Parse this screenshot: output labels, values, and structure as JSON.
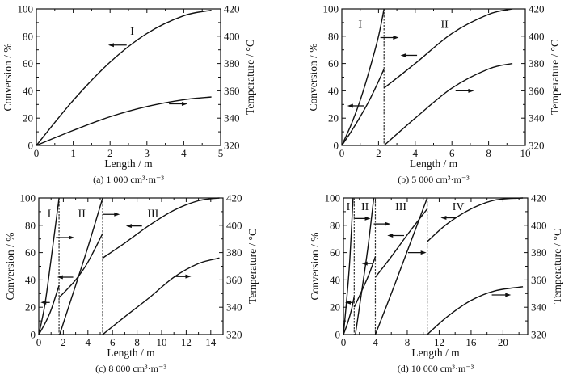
{
  "chart_data": [
    {
      "type": "line",
      "id": "a",
      "caption": "(a) 1 000 cm³·m⁻³",
      "xlabel": "Length / m",
      "ylabel_left": "Conversion / %",
      "ylabel_right": "Temperature / °C",
      "xlim": [
        0,
        5
      ],
      "xticks": [
        0,
        1,
        2,
        3,
        4,
        5
      ],
      "xtick_labels": [
        "0",
        "1",
        "2",
        "3",
        "4",
        "5"
      ],
      "x_minor": 0.5,
      "ylim_left": [
        0,
        100
      ],
      "yticks_left": [
        "0",
        "20",
        "40",
        "60",
        "80",
        "100"
      ],
      "ylim_right": [
        320,
        420
      ],
      "yticks_right": [
        "320",
        "340",
        "360",
        "380",
        "400",
        "420"
      ],
      "dividers": [],
      "stages": [
        {
          "label": "I",
          "x": 2.6,
          "y": 81
        }
      ],
      "series": [
        {
          "name": "Conversion stage I",
          "axis": "left",
          "x": [
            0,
            1,
            2,
            3,
            4,
            4.75
          ],
          "y": [
            0,
            33,
            61,
            82,
            95,
            99
          ]
        },
        {
          "name": "Temperature stage I",
          "axis": "right",
          "x": [
            0,
            1,
            2,
            3,
            4,
            4.75
          ],
          "y": [
            320,
            331,
            341,
            348.5,
            353.5,
            355.5
          ]
        }
      ],
      "arrows": [
        {
          "from": [
            2.45,
            73.5
          ],
          "to": [
            1.95,
            73.5
          ],
          "axis": "left"
        },
        {
          "from": [
            3.6,
            30.5
          ],
          "to": [
            4.1,
            30.5
          ],
          "axis": "right"
        }
      ]
    },
    {
      "type": "line",
      "id": "b",
      "caption": "(b) 5 000 cm³·m⁻³",
      "xlabel": "Length / m",
      "ylabel_left": "Conversion / %",
      "ylabel_right": "Temperature / °C",
      "xlim": [
        0,
        10
      ],
      "xticks": [
        0,
        2,
        4,
        6,
        8,
        10
      ],
      "xtick_labels": [
        "0",
        "2",
        "4",
        "6",
        "8",
        "10"
      ],
      "x_minor": 1,
      "ylim_left": [
        0,
        100
      ],
      "yticks_left": [
        "0",
        "20",
        "40",
        "60",
        "80",
        "100"
      ],
      "ylim_right": [
        320,
        420
      ],
      "yticks_right": [
        "320",
        "340",
        "360",
        "380",
        "400",
        "420"
      ],
      "dividers": [
        2.3
      ],
      "stages": [
        {
          "label": "I",
          "x": 1.0,
          "y": 86
        },
        {
          "label": "II",
          "x": 5.6,
          "y": 86
        }
      ],
      "series": [
        {
          "name": "Temperature stage I",
          "axis": "right",
          "x": [
            0,
            0.5,
            1,
            1.5,
            2,
            2.3
          ],
          "y": [
            320,
            335,
            353,
            375,
            400,
            420
          ]
        },
        {
          "name": "Conversion stage I",
          "axis": "left",
          "x": [
            0,
            0.5,
            1,
            1.5,
            2,
            2.3
          ],
          "y": [
            0,
            10,
            21,
            33,
            47,
            56
          ]
        },
        {
          "name": "Conversion stage II",
          "axis": "left",
          "x": [
            2.3,
            4,
            6,
            8,
            9.3
          ],
          "y": [
            42,
            60,
            82,
            96,
            100
          ]
        },
        {
          "name": "Temperature stage II",
          "axis": "right",
          "x": [
            2.3,
            4,
            6,
            8,
            9.3
          ],
          "y": [
            320,
            340,
            362,
            376,
            380
          ]
        }
      ],
      "arrows": [
        {
          "from": [
            2.1,
            79
          ],
          "to": [
            3.1,
            79
          ],
          "axis": "right"
        },
        {
          "from": [
            1.2,
            29
          ],
          "to": [
            0.3,
            29
          ],
          "axis": "left"
        },
        {
          "from": [
            4.1,
            66
          ],
          "to": [
            3.2,
            66
          ],
          "axis": "left"
        },
        {
          "from": [
            6.2,
            40
          ],
          "to": [
            7.2,
            40
          ],
          "axis": "right"
        }
      ]
    },
    {
      "type": "line",
      "id": "c",
      "caption": "(c) 8 000 cm³·m⁻³",
      "xlabel": "Length / m",
      "ylabel_left": "Conversion / %",
      "ylabel_right": "Temperature / °C",
      "xlim": [
        0,
        15
      ],
      "xticks": [
        0,
        2,
        4,
        6,
        8,
        10,
        12,
        14
      ],
      "xtick_labels": [
        "0",
        "2",
        "4",
        "6",
        "8",
        "10",
        "12",
        "14"
      ],
      "x_minor": 1,
      "ylim_left": [
        0,
        100
      ],
      "yticks_left": [
        "0",
        "20",
        "40",
        "60",
        "80",
        "100"
      ],
      "ylim_right": [
        320,
        420
      ],
      "yticks_right": [
        "320",
        "340",
        "360",
        "380",
        "400",
        "420"
      ],
      "dividers": [
        1.65,
        5.2
      ],
      "stages": [
        {
          "label": "I",
          "x": 0.85,
          "y": 86
        },
        {
          "label": "II",
          "x": 3.5,
          "y": 86
        },
        {
          "label": "III",
          "x": 9.3,
          "y": 86
        }
      ],
      "series": [
        {
          "name": "Temperature stage I",
          "axis": "right",
          "x": [
            0,
            0.5,
            1,
            1.65
          ],
          "y": [
            320,
            342,
            375,
            420
          ]
        },
        {
          "name": "Conversion stage I",
          "axis": "left",
          "x": [
            0,
            0.5,
            1,
            1.65
          ],
          "y": [
            0,
            8,
            18,
            36
          ]
        },
        {
          "name": "Conversion stage II",
          "axis": "left",
          "x": [
            1.65,
            3,
            4,
            5.2
          ],
          "y": [
            27,
            40,
            53,
            74
          ]
        },
        {
          "name": "Temperature stage II",
          "axis": "right",
          "x": [
            1.7,
            3,
            4,
            5.2
          ],
          "y": [
            320,
            356,
            384,
            420
          ]
        },
        {
          "name": "Conversion stage III",
          "axis": "left",
          "x": [
            5.2,
            7,
            9,
            11,
            13,
            14.7
          ],
          "y": [
            56,
            67,
            80,
            91,
            98,
            100
          ]
        },
        {
          "name": "Temperature stage III",
          "axis": "right",
          "x": [
            5.2,
            7,
            9,
            11,
            13,
            14.7
          ],
          "y": [
            320,
            333,
            347,
            362,
            372,
            376
          ]
        }
      ],
      "arrows": [
        {
          "from": [
            1.4,
            71
          ],
          "to": [
            2.9,
            71
          ],
          "axis": "right"
        },
        {
          "from": [
            0.9,
            23.5
          ],
          "to": [
            0.15,
            23.5
          ],
          "axis": "left"
        },
        {
          "from": [
            2.8,
            42
          ],
          "to": [
            1.5,
            42
          ],
          "axis": "left"
        },
        {
          "from": [
            5.2,
            88
          ],
          "to": [
            6.6,
            88
          ],
          "axis": "right"
        },
        {
          "from": [
            8.4,
            79.5
          ],
          "to": [
            7.1,
            79.5
          ],
          "axis": "left"
        },
        {
          "from": [
            11,
            42.5
          ],
          "to": [
            12.4,
            42.5
          ],
          "axis": "right"
        }
      ]
    },
    {
      "type": "line",
      "id": "d",
      "caption": "(d) 10 000 cm³·m⁻³",
      "xlabel": "Length / m",
      "ylabel_left": "Conversion / %",
      "ylabel_right": "Temperature / °C",
      "xlim": [
        0,
        23.1
      ],
      "xticks": [
        0,
        4,
        8,
        12,
        16,
        20
      ],
      "xtick_labels": [
        "0",
        "4",
        "8",
        "12",
        "16",
        "20"
      ],
      "x_minor": 2,
      "ylim_left": [
        0,
        100
      ],
      "yticks_left": [
        "0",
        "20",
        "40",
        "60",
        "80",
        "100"
      ],
      "ylim_right": [
        320,
        420
      ],
      "yticks_right": [
        "320",
        "340",
        "360",
        "380",
        "400",
        "420"
      ],
      "dividers": [
        1.35,
        4.0,
        10.5
      ],
      "stages": [
        {
          "label": "I",
          "x": 0.6,
          "y": 91
        },
        {
          "label": "II",
          "x": 2.7,
          "y": 91
        },
        {
          "label": "III",
          "x": 7.2,
          "y": 91
        },
        {
          "label": "IV",
          "x": 14.4,
          "y": 91
        }
      ],
      "series": [
        {
          "name": "Temperature stage I",
          "axis": "right",
          "x": [
            0,
            0.4,
            0.8,
            1.2
          ],
          "y": [
            320,
            345,
            375,
            420
          ]
        },
        {
          "name": "Conversion stage I",
          "axis": "left",
          "x": [
            0,
            0.5,
            1,
            1.35
          ],
          "y": [
            0,
            8,
            18,
            28
          ]
        },
        {
          "name": "Conversion stage II",
          "axis": "left",
          "x": [
            1.35,
            2.3,
            3.2,
            4.0
          ],
          "y": [
            20,
            32,
            44,
            57
          ]
        },
        {
          "name": "Temperature stage II",
          "axis": "right",
          "x": [
            1.5,
            2.3,
            3.1,
            3.8
          ],
          "y": [
            320,
            352,
            385,
            420
          ]
        },
        {
          "name": "Conversion stage III",
          "axis": "left",
          "x": [
            4.0,
            6,
            8,
            10.5
          ],
          "y": [
            42,
            57,
            73,
            92
          ]
        },
        {
          "name": "Temperature stage III",
          "axis": "right",
          "x": [
            4.0,
            6,
            8,
            10.5
          ],
          "y": [
            320,
            350,
            381,
            420
          ]
        },
        {
          "name": "Conversion stage IV",
          "axis": "left",
          "x": [
            10.5,
            13,
            16,
            19,
            22.5
          ],
          "y": [
            68,
            81,
            92,
            98.5,
            100
          ]
        },
        {
          "name": "Temperature stage IV",
          "axis": "right",
          "x": [
            10.5,
            13,
            16,
            19,
            22.5
          ],
          "y": [
            320,
            333,
            345,
            352,
            355
          ]
        }
      ],
      "arrows": [
        {
          "from": [
            1.4,
            85
          ],
          "to": [
            3.4,
            85
          ],
          "axis": "right"
        },
        {
          "from": [
            3.8,
            81
          ],
          "to": [
            5.9,
            81
          ],
          "axis": "right"
        },
        {
          "from": [
            7.6,
            72.5
          ],
          "to": [
            5.5,
            72.5
          ],
          "axis": "left"
        },
        {
          "from": [
            3.7,
            52
          ],
          "to": [
            2.3,
            52
          ],
          "axis": "left"
        },
        {
          "from": [
            1.2,
            23.5
          ],
          "to": [
            0.2,
            23.5
          ],
          "axis": "left"
        },
        {
          "from": [
            8.1,
            60
          ],
          "to": [
            10.4,
            60
          ],
          "axis": "right"
        },
        {
          "from": [
            14.1,
            85.5
          ],
          "to": [
            12.2,
            85.5
          ],
          "axis": "left"
        },
        {
          "from": [
            18.6,
            29
          ],
          "to": [
            21,
            29
          ],
          "axis": "right"
        }
      ]
    }
  ]
}
